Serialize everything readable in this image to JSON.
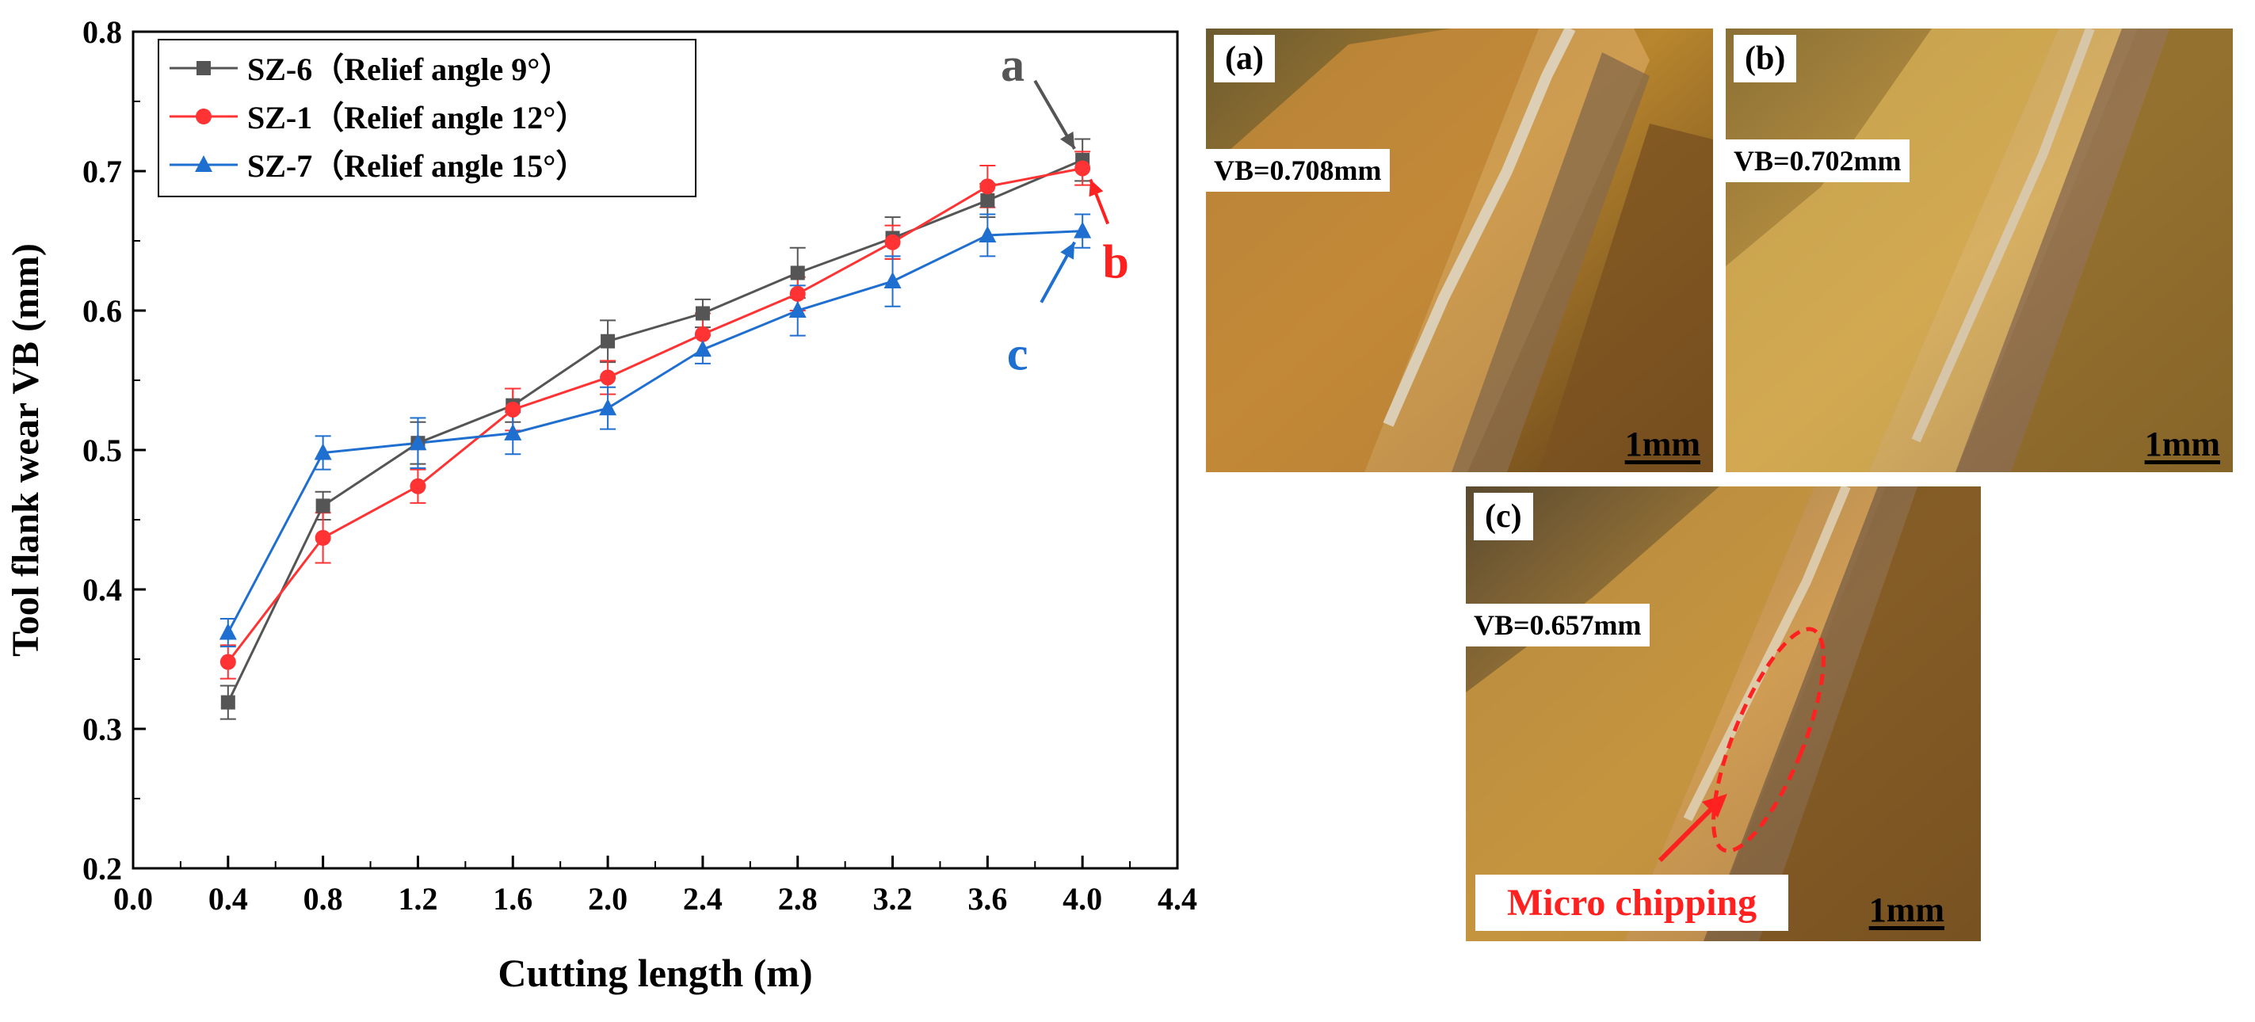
{
  "chart_data": {
    "type": "line",
    "xlabel": "Cutting length (m)",
    "ylabel": "Tool flank wear VB (mm)",
    "xlim": [
      0.0,
      4.4
    ],
    "ylim": [
      0.2,
      0.8
    ],
    "xticks": [
      "0.0",
      "0.4",
      "0.8",
      "1.2",
      "1.6",
      "2.0",
      "2.4",
      "2.8",
      "3.2",
      "3.6",
      "4.0",
      "4.4"
    ],
    "yticks": [
      "0.2",
      "0.3",
      "0.4",
      "0.5",
      "0.6",
      "0.7",
      "0.8"
    ],
    "x": [
      0.4,
      0.8,
      1.2,
      1.6,
      2.0,
      2.4,
      2.8,
      3.2,
      3.6,
      4.0
    ],
    "legend_position": "top-left",
    "series": [
      {
        "name": "SZ-6（Relief angle 9°）",
        "color": "#555555",
        "marker": "square",
        "values": [
          0.319,
          0.46,
          0.505,
          0.532,
          0.578,
          0.598,
          0.627,
          0.652,
          0.679,
          0.708
        ],
        "errors": [
          0.012,
          0.01,
          0.015,
          0.012,
          0.015,
          0.01,
          0.018,
          0.015,
          0.012,
          0.015
        ]
      },
      {
        "name": "SZ-1（Relief angle 12°）",
        "color": "#ff3333",
        "marker": "circle",
        "values": [
          0.348,
          0.437,
          0.474,
          0.529,
          0.552,
          0.583,
          0.612,
          0.649,
          0.689,
          0.702
        ],
        "errors": [
          0.012,
          0.018,
          0.012,
          0.015,
          0.012,
          0.015,
          0.012,
          0.012,
          0.015,
          0.012
        ]
      },
      {
        "name": "SZ-7（Relief angle 15°）",
        "color": "#1f6fd0",
        "marker": "triangle",
        "values": [
          0.369,
          0.498,
          0.505,
          0.512,
          0.53,
          0.572,
          0.6,
          0.621,
          0.654,
          0.657
        ],
        "errors": [
          0.01,
          0.012,
          0.018,
          0.015,
          0.015,
          0.01,
          0.018,
          0.018,
          0.015,
          0.012
        ]
      }
    ],
    "annotations": [
      {
        "text": "a",
        "color": "#555555",
        "points_to_series": 0,
        "at_x": 4.0
      },
      {
        "text": "b",
        "color": "#ff2020",
        "points_to_series": 1,
        "at_x": 4.0
      },
      {
        "text": "c",
        "color": "#1f6fd0",
        "points_to_series": 2,
        "at_x": 4.0
      }
    ]
  },
  "photos": [
    {
      "label": "(a)",
      "vb": "VB=0.708mm",
      "scale": "1mm"
    },
    {
      "label": "(b)",
      "vb": "VB=0.702mm",
      "scale": "1mm"
    },
    {
      "label": "(c)",
      "vb": "VB=0.657mm",
      "scale": "1mm",
      "callout": "Micro chipping"
    }
  ]
}
